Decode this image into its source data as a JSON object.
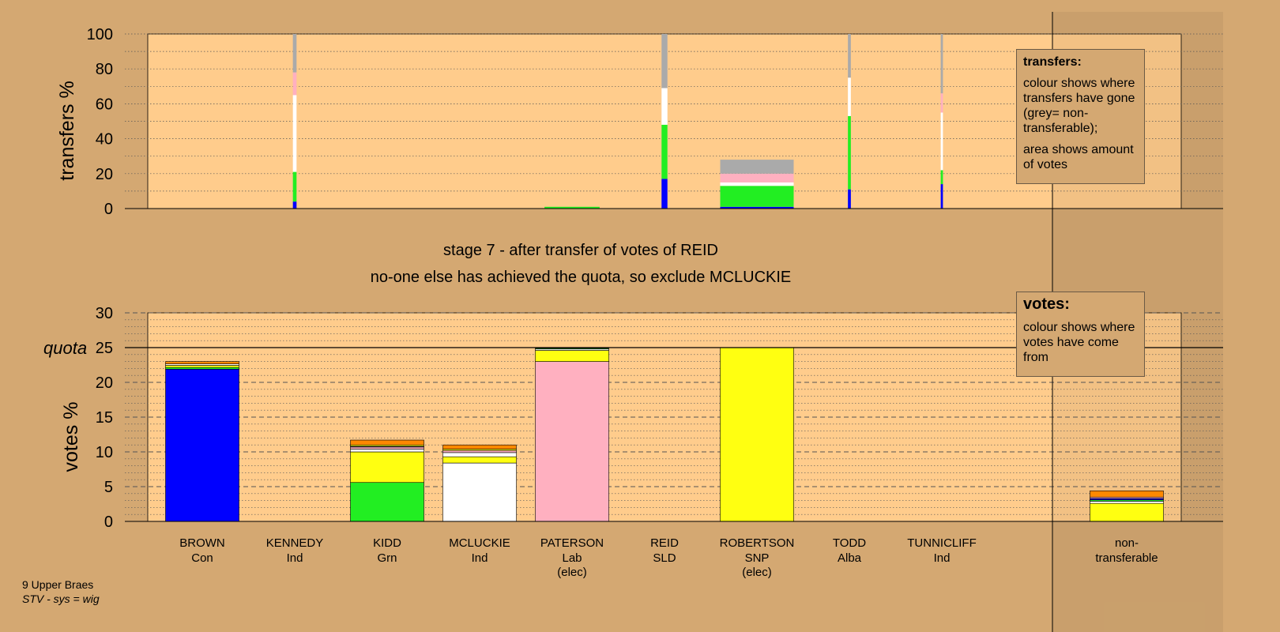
{
  "footer": {
    "line1": "9 Upper Braes",
    "line2": "STV - sys = wig"
  },
  "chart_data": {
    "type": "bar",
    "title": "stage 7 - after transfer of votes of REID",
    "subtitle": "no-one else has achieved the quota, so exclude MCLUCKIE",
    "colors": {
      "Con": "#0000ff",
      "Grn": "#22ee22",
      "Ind": "#ffffff",
      "Lab": "#ffb0c0",
      "SNP": "#ffff11",
      "Alba": "#ff8800",
      "nontransferable": "#aaaaaa",
      "background": "#d4a872",
      "plot": "#ffcc8c"
    },
    "transfers_chart": {
      "ylabel": "transfers %",
      "ylim": [
        0,
        100
      ],
      "yticks": [
        0,
        20,
        40,
        60,
        80,
        100
      ],
      "grid": true,
      "legend": {
        "title": "transfers:",
        "text1": "colour shows where transfers have gone (grey= non-transferable);",
        "text2": "area shows amount of votes"
      },
      "bars": [
        {
          "candidate": "KENNEDY",
          "slot": 1,
          "width_pct": 5,
          "segments": [
            {
              "party": "Con",
              "value": 4
            },
            {
              "party": "Grn",
              "value": 17
            },
            {
              "party": "Ind",
              "value": 44
            },
            {
              "party": "Lab",
              "value": 13
            },
            {
              "party": "nontransferable",
              "value": 22
            }
          ]
        },
        {
          "candidate": "PATERSON",
          "slot": 4,
          "width_pct": 75,
          "segments": [
            {
              "party": "Grn",
              "value": 1
            }
          ]
        },
        {
          "candidate": "REID",
          "slot": 5,
          "width_pct": 8,
          "segments": [
            {
              "party": "Con",
              "value": 17
            },
            {
              "party": "Grn",
              "value": 31
            },
            {
              "party": "Ind",
              "value": 21
            },
            {
              "party": "nontransferable",
              "value": 31
            }
          ]
        },
        {
          "candidate": "ROBERTSON",
          "slot": 6,
          "width_pct": 100,
          "segments": [
            {
              "party": "Con",
              "value": 1
            },
            {
              "party": "Grn",
              "value": 12
            },
            {
              "party": "Ind",
              "value": 2
            },
            {
              "party": "Lab",
              "value": 5
            },
            {
              "party": "nontransferable",
              "value": 8
            }
          ]
        },
        {
          "candidate": "TODD",
          "slot": 7,
          "width_pct": 4,
          "segments": [
            {
              "party": "Con",
              "value": 11
            },
            {
              "party": "Grn",
              "value": 42
            },
            {
              "party": "Ind",
              "value": 22
            },
            {
              "party": "nontransferable",
              "value": 25
            }
          ]
        },
        {
          "candidate": "TUNNICLIFF",
          "slot": 8,
          "width_pct": 3,
          "segments": [
            {
              "party": "Con",
              "value": 14
            },
            {
              "party": "Grn",
              "value": 8
            },
            {
              "party": "Ind",
              "value": 33
            },
            {
              "party": "Lab",
              "value": 11
            },
            {
              "party": "nontransferable",
              "value": 34
            }
          ]
        }
      ]
    },
    "votes_chart": {
      "ylabel": "votes %",
      "ylim": [
        0,
        30
      ],
      "yticks": [
        0,
        5,
        10,
        15,
        20,
        25,
        30
      ],
      "quota": 25,
      "quota_label": "quota",
      "grid": true,
      "legend": {
        "title": "votes:",
        "text": "colour shows where votes have come from"
      },
      "categories": [
        {
          "name": "BROWN",
          "party": "Con",
          "note": ""
        },
        {
          "name": "KENNEDY",
          "party": "Ind",
          "note": ""
        },
        {
          "name": "KIDD",
          "party": "Grn",
          "note": ""
        },
        {
          "name": "MCLUCKIE",
          "party": "Ind",
          "note": ""
        },
        {
          "name": "PATERSON",
          "party": "Lab",
          "note": "(elec)"
        },
        {
          "name": "REID",
          "party": "SLD",
          "note": ""
        },
        {
          "name": "ROBERTSON",
          "party": "SNP",
          "note": "(elec)"
        },
        {
          "name": "TODD",
          "party": "Alba",
          "note": ""
        },
        {
          "name": "TUNNICLIFF",
          "party": "Ind",
          "note": ""
        },
        {
          "name": "non-",
          "party": "transferable",
          "note": ""
        }
      ],
      "bars": [
        {
          "slot": 0,
          "segments": [
            {
              "party": "Con",
              "value": 21.9
            },
            {
              "party": "Grn",
              "value": 0.25
            },
            {
              "party": "SNP",
              "value": 0.3
            },
            {
              "party": "Ind",
              "value": 0.2
            },
            {
              "party": "Alba",
              "value": 0.35
            }
          ]
        },
        {
          "slot": 2,
          "segments": [
            {
              "party": "Grn",
              "value": 5.6
            },
            {
              "party": "SNP",
              "value": 4.4
            },
            {
              "party": "Ind",
              "value": 0.4
            },
            {
              "party": "Lab",
              "value": 0.3
            },
            {
              "party": "Con",
              "value": 0.1
            },
            {
              "party": "SNP",
              "value": 0.2
            },
            {
              "party": "Alba",
              "value": 0.7
            }
          ]
        },
        {
          "slot": 3,
          "segments": [
            {
              "party": "Ind",
              "value": 8.4
            },
            {
              "party": "SNP",
              "value": 0.9
            },
            {
              "party": "Ind",
              "value": 0.6
            },
            {
              "party": "Lab",
              "value": 0.3
            },
            {
              "party": "SNP",
              "value": 0.2
            },
            {
              "party": "Alba",
              "value": 0.6
            }
          ]
        },
        {
          "slot": 4,
          "segments": [
            {
              "party": "Lab",
              "value": 23.0
            },
            {
              "party": "SNP",
              "value": 1.6
            },
            {
              "party": "Ind",
              "value": 0.2
            },
            {
              "party": "Grn",
              "value": 0.1
            }
          ]
        },
        {
          "slot": 6,
          "segments": [
            {
              "party": "SNP",
              "value": 25.0
            }
          ]
        },
        {
          "slot": 9,
          "segments": [
            {
              "party": "SNP",
              "value": 2.6
            },
            {
              "party": "Ind",
              "value": 0.3
            },
            {
              "party": "Grn",
              "value": 0.2
            },
            {
              "party": "Con",
              "value": 0.2
            },
            {
              "party": "Lab",
              "value": 0.2
            },
            {
              "party": "Alba",
              "value": 0.9
            }
          ]
        }
      ]
    }
  }
}
